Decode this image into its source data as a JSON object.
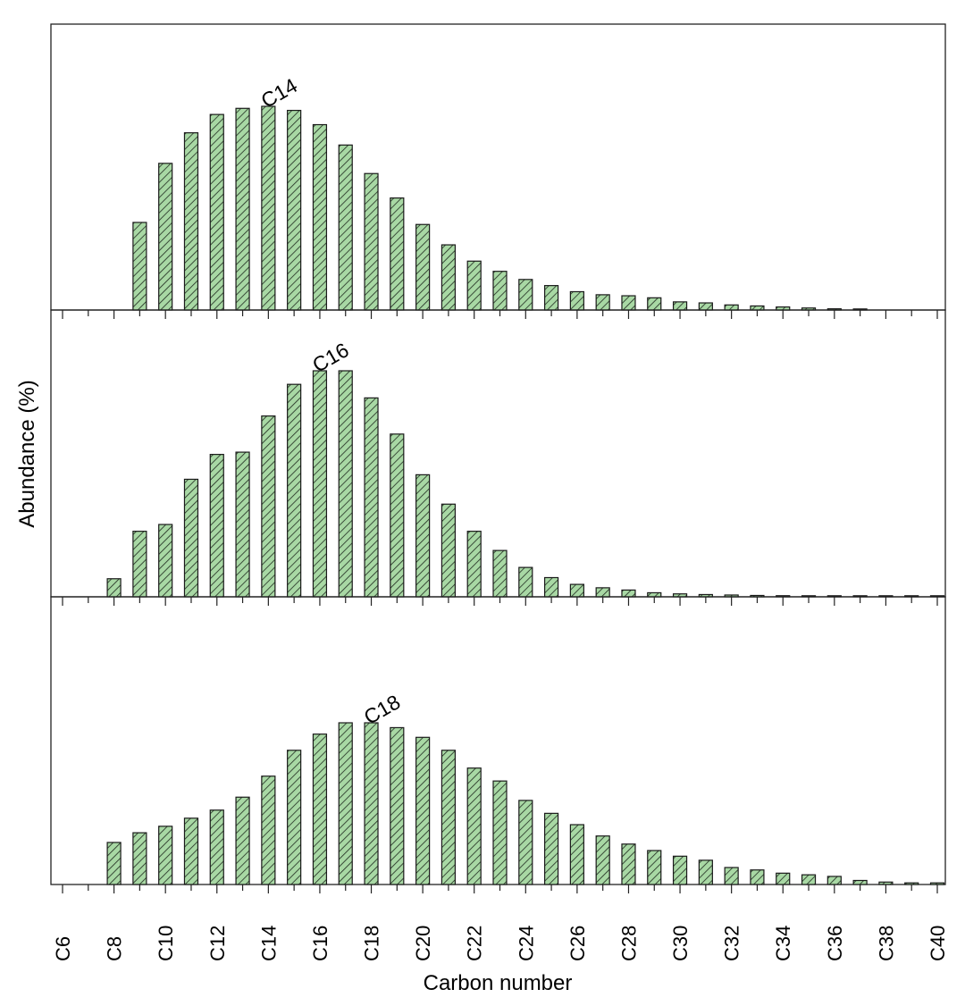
{
  "chart_data": {
    "type": "bar",
    "layout": "three vertically stacked panels sharing the x axis",
    "xlabel": "Carbon number",
    "ylabel": "Abundance (%)",
    "x_range": [
      "C6",
      "C40"
    ],
    "tick_labels": [
      "C6",
      "C8",
      "C10",
      "C12",
      "C14",
      "C16",
      "C18",
      "C20",
      "C22",
      "C24",
      "C26",
      "C28",
      "C30",
      "C32",
      "C34",
      "C36",
      "C38",
      "C40"
    ],
    "bar_style": {
      "fill": "#a8d8a4",
      "hatch": "diagonal",
      "edge": "#1a1a1a"
    },
    "panels": [
      {
        "name": "top",
        "peak_label": "C14",
        "peak_carbon": 14,
        "series": [
          {
            "c": 9,
            "v": 43
          },
          {
            "c": 10,
            "v": 72
          },
          {
            "c": 11,
            "v": 87
          },
          {
            "c": 12,
            "v": 96
          },
          {
            "c": 13,
            "v": 99
          },
          {
            "c": 14,
            "v": 100
          },
          {
            "c": 15,
            "v": 98
          },
          {
            "c": 16,
            "v": 91
          },
          {
            "c": 17,
            "v": 81
          },
          {
            "c": 18,
            "v": 67
          },
          {
            "c": 19,
            "v": 55
          },
          {
            "c": 20,
            "v": 42
          },
          {
            "c": 21,
            "v": 32
          },
          {
            "c": 22,
            "v": 24
          },
          {
            "c": 23,
            "v": 19
          },
          {
            "c": 24,
            "v": 15
          },
          {
            "c": 25,
            "v": 12
          },
          {
            "c": 26,
            "v": 9
          },
          {
            "c": 27,
            "v": 7.5
          },
          {
            "c": 28,
            "v": 7
          },
          {
            "c": 29,
            "v": 6
          },
          {
            "c": 30,
            "v": 4
          },
          {
            "c": 31,
            "v": 3.5
          },
          {
            "c": 32,
            "v": 2.5
          },
          {
            "c": 33,
            "v": 2
          },
          {
            "c": 34,
            "v": 1.5
          },
          {
            "c": 35,
            "v": 1
          },
          {
            "c": 36,
            "v": 0.6
          },
          {
            "c": 37,
            "v": 0.4
          }
        ]
      },
      {
        "name": "middle",
        "peak_label": "C16",
        "peak_carbon": 16,
        "series": [
          {
            "c": 8,
            "v": 8
          },
          {
            "c": 9,
            "v": 29
          },
          {
            "c": 10,
            "v": 32
          },
          {
            "c": 11,
            "v": 52
          },
          {
            "c": 12,
            "v": 63
          },
          {
            "c": 13,
            "v": 64
          },
          {
            "c": 14,
            "v": 80
          },
          {
            "c": 15,
            "v": 94
          },
          {
            "c": 16,
            "v": 100
          },
          {
            "c": 17,
            "v": 100
          },
          {
            "c": 18,
            "v": 88
          },
          {
            "c": 19,
            "v": 72
          },
          {
            "c": 20,
            "v": 54
          },
          {
            "c": 21,
            "v": 41
          },
          {
            "c": 22,
            "v": 29
          },
          {
            "c": 23,
            "v": 20.5
          },
          {
            "c": 24,
            "v": 13
          },
          {
            "c": 25,
            "v": 8.5
          },
          {
            "c": 26,
            "v": 5.5
          },
          {
            "c": 27,
            "v": 4
          },
          {
            "c": 28,
            "v": 3
          },
          {
            "c": 29,
            "v": 1.8
          },
          {
            "c": 30,
            "v": 1.3
          },
          {
            "c": 31,
            "v": 1
          },
          {
            "c": 32,
            "v": 0.8
          },
          {
            "c": 33,
            "v": 0.6
          },
          {
            "c": 34,
            "v": 0.5
          },
          {
            "c": 35,
            "v": 0.4
          },
          {
            "c": 36,
            "v": 0.3
          },
          {
            "c": 37,
            "v": 0.3
          },
          {
            "c": 38,
            "v": 0.2
          },
          {
            "c": 39,
            "v": 0.2
          },
          {
            "c": 40,
            "v": 0.2
          }
        ]
      },
      {
        "name": "bottom",
        "peak_label": "C18",
        "peak_carbon": 18,
        "series": [
          {
            "c": 8,
            "v": 26
          },
          {
            "c": 9,
            "v": 32
          },
          {
            "c": 10,
            "v": 36
          },
          {
            "c": 11,
            "v": 41
          },
          {
            "c": 12,
            "v": 46
          },
          {
            "c": 13,
            "v": 54
          },
          {
            "c": 14,
            "v": 67
          },
          {
            "c": 15,
            "v": 83
          },
          {
            "c": 16,
            "v": 93
          },
          {
            "c": 17,
            "v": 100
          },
          {
            "c": 18,
            "v": 100
          },
          {
            "c": 19,
            "v": 97
          },
          {
            "c": 20,
            "v": 91
          },
          {
            "c": 21,
            "v": 83
          },
          {
            "c": 22,
            "v": 72
          },
          {
            "c": 23,
            "v": 64
          },
          {
            "c": 24,
            "v": 52
          },
          {
            "c": 25,
            "v": 44
          },
          {
            "c": 26,
            "v": 37
          },
          {
            "c": 27,
            "v": 30
          },
          {
            "c": 28,
            "v": 25
          },
          {
            "c": 29,
            "v": 21
          },
          {
            "c": 30,
            "v": 17.5
          },
          {
            "c": 31,
            "v": 15
          },
          {
            "c": 32,
            "v": 10.5
          },
          {
            "c": 33,
            "v": 9
          },
          {
            "c": 34,
            "v": 7
          },
          {
            "c": 35,
            "v": 6
          },
          {
            "c": 36,
            "v": 5
          },
          {
            "c": 37,
            "v": 2.5
          },
          {
            "c": 38,
            "v": 1.5
          },
          {
            "c": 39,
            "v": 1
          },
          {
            "c": 40,
            "v": 1
          }
        ]
      }
    ]
  }
}
